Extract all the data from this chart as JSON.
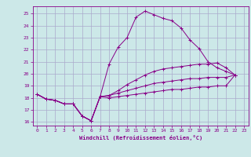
{
  "background_color": "#cce8e8",
  "line_color": "#880088",
  "grid_color": "#aaaacc",
  "xlabel": "Windchill (Refroidissement éolien,°C)",
  "xlabel_color": "#880088",
  "tick_color": "#880088",
  "spine_color": "#880088",
  "xlim": [
    -0.5,
    23.5
  ],
  "ylim": [
    15.7,
    25.6
  ],
  "yticks": [
    16,
    17,
    18,
    19,
    20,
    21,
    22,
    23,
    24,
    25
  ],
  "xticks": [
    0,
    1,
    2,
    3,
    4,
    5,
    6,
    7,
    8,
    9,
    10,
    11,
    12,
    13,
    14,
    15,
    16,
    17,
    18,
    19,
    20,
    21,
    22,
    23
  ],
  "series1": [
    [
      0,
      18.3
    ],
    [
      1,
      17.9
    ],
    [
      2,
      17.8
    ],
    [
      3,
      17.5
    ],
    [
      4,
      17.5
    ],
    [
      5,
      16.5
    ],
    [
      6,
      16.1
    ],
    [
      7,
      18.1
    ],
    [
      8,
      20.8
    ],
    [
      9,
      22.2
    ],
    [
      10,
      23.0
    ],
    [
      11,
      24.7
    ],
    [
      12,
      25.2
    ],
    [
      13,
      24.9
    ],
    [
      14,
      24.6
    ],
    [
      15,
      24.4
    ],
    [
      16,
      23.8
    ],
    [
      17,
      22.8
    ],
    [
      18,
      22.1
    ],
    [
      19,
      21.0
    ],
    [
      20,
      20.5
    ],
    [
      21,
      20.2
    ],
    [
      22,
      19.9
    ]
  ],
  "series2": [
    [
      0,
      18.3
    ],
    [
      1,
      17.9
    ],
    [
      2,
      17.8
    ],
    [
      3,
      17.5
    ],
    [
      4,
      17.5
    ],
    [
      5,
      16.5
    ],
    [
      6,
      16.1
    ],
    [
      7,
      18.1
    ],
    [
      8,
      18.2
    ],
    [
      9,
      18.6
    ],
    [
      10,
      19.1
    ],
    [
      11,
      19.5
    ],
    [
      12,
      19.9
    ],
    [
      13,
      20.2
    ],
    [
      14,
      20.4
    ],
    [
      15,
      20.5
    ],
    [
      16,
      20.6
    ],
    [
      17,
      20.7
    ],
    [
      18,
      20.8
    ],
    [
      19,
      20.8
    ],
    [
      20,
      20.9
    ],
    [
      21,
      20.5
    ],
    [
      22,
      19.9
    ]
  ],
  "series3": [
    [
      0,
      18.3
    ],
    [
      1,
      17.9
    ],
    [
      2,
      17.8
    ],
    [
      3,
      17.5
    ],
    [
      4,
      17.5
    ],
    [
      5,
      16.5
    ],
    [
      6,
      16.1
    ],
    [
      7,
      18.1
    ],
    [
      8,
      18.2
    ],
    [
      9,
      18.4
    ],
    [
      10,
      18.6
    ],
    [
      11,
      18.8
    ],
    [
      12,
      19.0
    ],
    [
      13,
      19.2
    ],
    [
      14,
      19.3
    ],
    [
      15,
      19.4
    ],
    [
      16,
      19.5
    ],
    [
      17,
      19.6
    ],
    [
      18,
      19.6
    ],
    [
      19,
      19.7
    ],
    [
      20,
      19.7
    ],
    [
      21,
      19.7
    ],
    [
      22,
      19.9
    ]
  ],
  "series4": [
    [
      0,
      18.3
    ],
    [
      1,
      17.9
    ],
    [
      2,
      17.8
    ],
    [
      3,
      17.5
    ],
    [
      4,
      17.5
    ],
    [
      5,
      16.5
    ],
    [
      6,
      16.1
    ],
    [
      7,
      18.1
    ],
    [
      8,
      18.0
    ],
    [
      9,
      18.1
    ],
    [
      10,
      18.2
    ],
    [
      11,
      18.3
    ],
    [
      12,
      18.4
    ],
    [
      13,
      18.5
    ],
    [
      14,
      18.6
    ],
    [
      15,
      18.7
    ],
    [
      16,
      18.7
    ],
    [
      17,
      18.8
    ],
    [
      18,
      18.9
    ],
    [
      19,
      18.9
    ],
    [
      20,
      19.0
    ],
    [
      21,
      19.0
    ],
    [
      22,
      19.9
    ]
  ]
}
